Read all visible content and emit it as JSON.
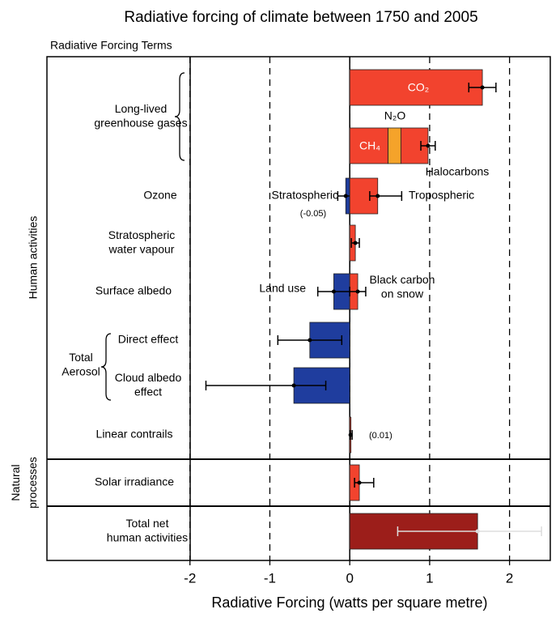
{
  "chart_data": {
    "type": "bar",
    "orientation": "horizontal",
    "title": "Radiative forcing of climate between 1750 and 2005",
    "subtitle": "Radiative Forcing Terms",
    "x_label": "Radiative Forcing  (watts per square metre)",
    "xlim": [
      -3.79,
      2.51
    ],
    "xticks": [
      -2,
      -1,
      0,
      1,
      2
    ],
    "grid": true,
    "sections": [
      {
        "label": [
          "Human activities"
        ],
        "terms": [
          {
            "label": [
              "Long-lived",
              "greenhouse gases"
            ],
            "rows": [
              {
                "bars": [
                  {
                    "segments": [
                      {
                        "name": [
                          "CO₂"
                        ],
                        "value": 1.66,
                        "color": "#f2432e"
                      }
                    ],
                    "error": {
                      "low": 1.49,
                      "high": 1.83
                    }
                  }
                ]
              },
              {
                "bars": [
                  {
                    "segments": [
                      {
                        "name": [
                          "CH₄"
                        ],
                        "value": 0.48,
                        "color": "#f2432e"
                      },
                      {
                        "name": [
                          "N₂O"
                        ],
                        "value": 0.16,
                        "color": "#f5a32a"
                      },
                      {
                        "name": [
                          "Halocarbons"
                        ],
                        "value": 0.34,
                        "color": "#f2432e"
                      }
                    ],
                    "error": {
                      "low": 0.89,
                      "high": 1.07
                    }
                  }
                ]
              }
            ]
          },
          {
            "label": [
              "Ozone"
            ],
            "rows": [
              {
                "bars": [
                  {
                    "segments": [
                      {
                        "name": [
                          "Stratospheric"
                        ],
                        "value": -0.05,
                        "value_label": "(-0.05)",
                        "color": "#1f3d9e"
                      }
                    ],
                    "error": {
                      "low": -0.15,
                      "high": 0.05
                    }
                  },
                  {
                    "segments": [
                      {
                        "name": [
                          "Tropospheric"
                        ],
                        "value": 0.35,
                        "color": "#f2432e"
                      }
                    ],
                    "error": {
                      "low": 0.25,
                      "high": 0.65
                    }
                  }
                ]
              }
            ]
          },
          {
            "label": [
              "Stratospheric",
              "water vapour"
            ],
            "rows": [
              {
                "bars": [
                  {
                    "segments": [
                      {
                        "value": 0.07,
                        "color": "#f2432e"
                      }
                    ],
                    "error": {
                      "low": 0.02,
                      "high": 0.12
                    }
                  }
                ]
              }
            ]
          },
          {
            "label": [
              "Surface albedo"
            ],
            "rows": [
              {
                "bars": [
                  {
                    "segments": [
                      {
                        "name": [
                          "Land use"
                        ],
                        "value": -0.2,
                        "color": "#1f3d9e"
                      }
                    ],
                    "error": {
                      "low": -0.4,
                      "high": 0.0
                    }
                  },
                  {
                    "segments": [
                      {
                        "name": [
                          "Black carbon",
                          "on snow"
                        ],
                        "value": 0.1,
                        "color": "#f2432e"
                      }
                    ],
                    "error": {
                      "low": 0.0,
                      "high": 0.2
                    }
                  }
                ]
              }
            ]
          },
          {
            "label": [
              "Total",
              "Aerosol"
            ],
            "rows": [
              {
                "label": [
                  "Direct effect"
                ],
                "bars": [
                  {
                    "segments": [
                      {
                        "value": -0.5,
                        "color": "#1f3d9e"
                      }
                    ],
                    "error": {
                      "low": -0.9,
                      "high": -0.1
                    }
                  }
                ]
              },
              {
                "label": [
                  "Cloud albedo",
                  "effect"
                ],
                "bars": [
                  {
                    "segments": [
                      {
                        "value": -0.7,
                        "color": "#1f3d9e"
                      }
                    ],
                    "error": {
                      "low": -1.8,
                      "high": -0.3
                    }
                  }
                ]
              }
            ]
          },
          {
            "label": [
              "Linear contrails"
            ],
            "rows": [
              {
                "bars": [
                  {
                    "segments": [
                      {
                        "value": 0.01,
                        "value_label": "(0.01)",
                        "color": "#f2432e"
                      }
                    ],
                    "error": {
                      "low": 0.003,
                      "high": 0.03
                    }
                  }
                ]
              }
            ]
          }
        ]
      },
      {
        "label": [
          "Natural",
          "processes"
        ],
        "terms": [
          {
            "label": [
              "Solar irradiance"
            ],
            "rows": [
              {
                "bars": [
                  {
                    "segments": [
                      {
                        "value": 0.12,
                        "color": "#f2432e"
                      }
                    ],
                    "error": {
                      "low": 0.06,
                      "high": 0.3
                    }
                  }
                ]
              }
            ]
          }
        ]
      },
      {
        "terms": [
          {
            "label": [
              "Total net",
              "human activities"
            ],
            "rows": [
              {
                "bars": [
                  {
                    "segments": [
                      {
                        "value": 1.6,
                        "color": "#9c1e1a"
                      }
                    ],
                    "error": {
                      "low": 0.6,
                      "high": 2.4
                    }
                  }
                ]
              }
            ]
          }
        ]
      }
    ]
  }
}
